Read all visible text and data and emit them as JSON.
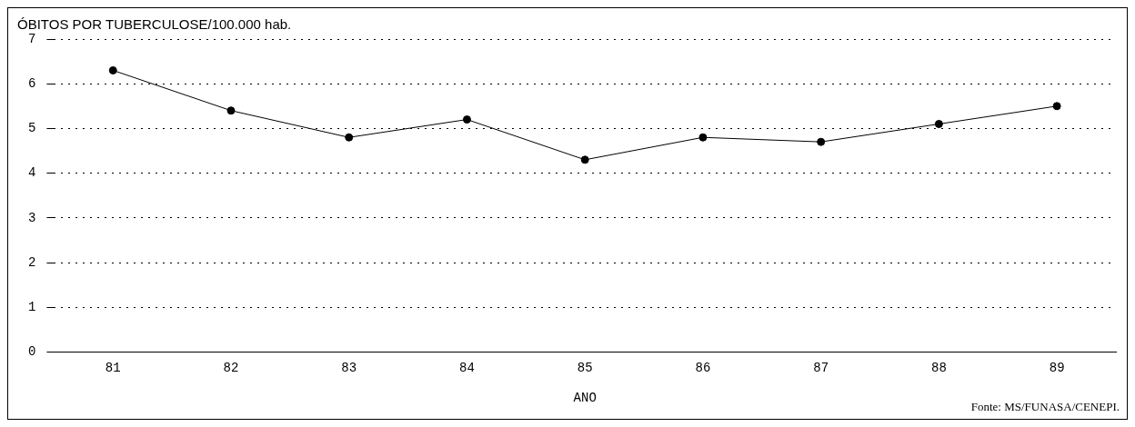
{
  "chart_data": {
    "type": "line",
    "title": "ÓBITOS POR TUBERCULOSE/100.000 hab.",
    "xlabel": "ANO",
    "categories": [
      "81",
      "82",
      "83",
      "84",
      "85",
      "86",
      "87",
      "88",
      "89"
    ],
    "values": [
      6.3,
      5.4,
      4.8,
      5.2,
      4.3,
      4.8,
      4.7,
      5.1,
      5.5
    ],
    "color": "#000000",
    "ylim": [
      0,
      7
    ],
    "yticks": [
      0,
      1,
      2,
      3,
      4,
      5,
      6,
      7
    ],
    "grid": "y",
    "marker": "circle",
    "line_style": "solid",
    "annotations": [
      "Fonte: MS/FUNASA/CENEPI."
    ]
  }
}
